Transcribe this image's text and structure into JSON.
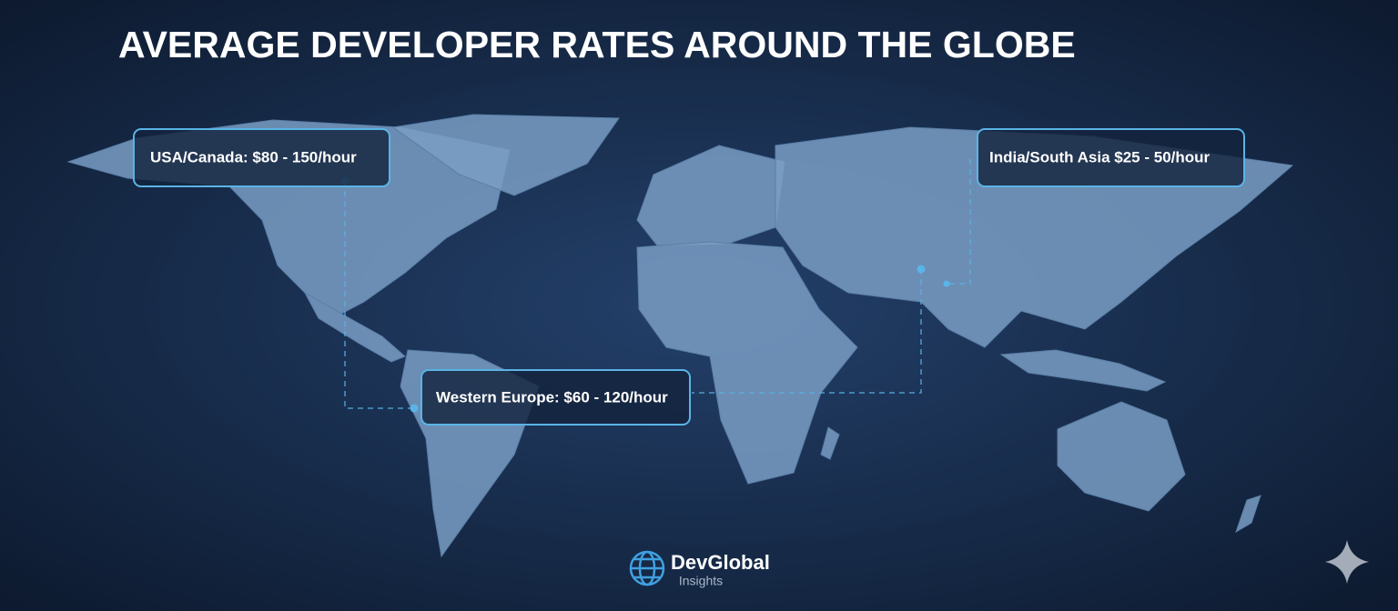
{
  "title": "AVERAGE DEVELOPER RATES AROUND THE GLOBE",
  "callouts": [
    {
      "label": "USA/Canada: $80 - 150/hour"
    },
    {
      "label": "India/South Asia $25 - 50/hour"
    },
    {
      "label": "Western Europe: $60 - 120/hour"
    }
  ],
  "logo": {
    "name": "DevGlobal",
    "tagline": "Insights"
  }
}
